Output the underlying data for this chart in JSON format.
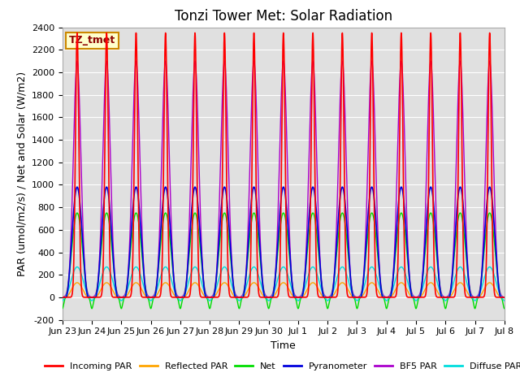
{
  "title": "Tonzi Tower Met: Solar Radiation",
  "ylabel": "PAR (umol/m2/s) / Net and Solar (W/m2)",
  "xlabel": "Time",
  "annotation": "TZ_tmet",
  "ylim": [
    -200,
    2400
  ],
  "yticks": [
    -200,
    0,
    200,
    400,
    600,
    800,
    1000,
    1200,
    1400,
    1600,
    1800,
    2000,
    2200,
    2400
  ],
  "bg_color": "#e0e0e0",
  "n_days": 15,
  "series": {
    "incoming_par": {
      "color": "#ff0000",
      "label": "Incoming PAR"
    },
    "reflected_par": {
      "color": "#ffa500",
      "label": "Reflected PAR"
    },
    "net": {
      "color": "#00dd00",
      "label": "Net"
    },
    "pyranometer": {
      "color": "#0000dd",
      "label": "Pyranometer"
    },
    "bf5_par": {
      "color": "#aa00cc",
      "label": "BF5 PAR"
    },
    "diffuse_par": {
      "color": "#00dddd",
      "label": "Diffuse PAR"
    }
  },
  "tick_labels": [
    "Jun 23",
    "Jun 24",
    "Jun 25",
    "Jun 26",
    "Jun 27",
    "Jun 28",
    "Jun 29",
    "Jun 30",
    "Jul 1",
    "Jul 2",
    "Jul 3",
    "Jul 4",
    "Jul 5",
    "Jul 6",
    "Jul 7",
    "Jul 8"
  ],
  "title_fontsize": 12,
  "label_fontsize": 9,
  "tick_fontsize": 8
}
